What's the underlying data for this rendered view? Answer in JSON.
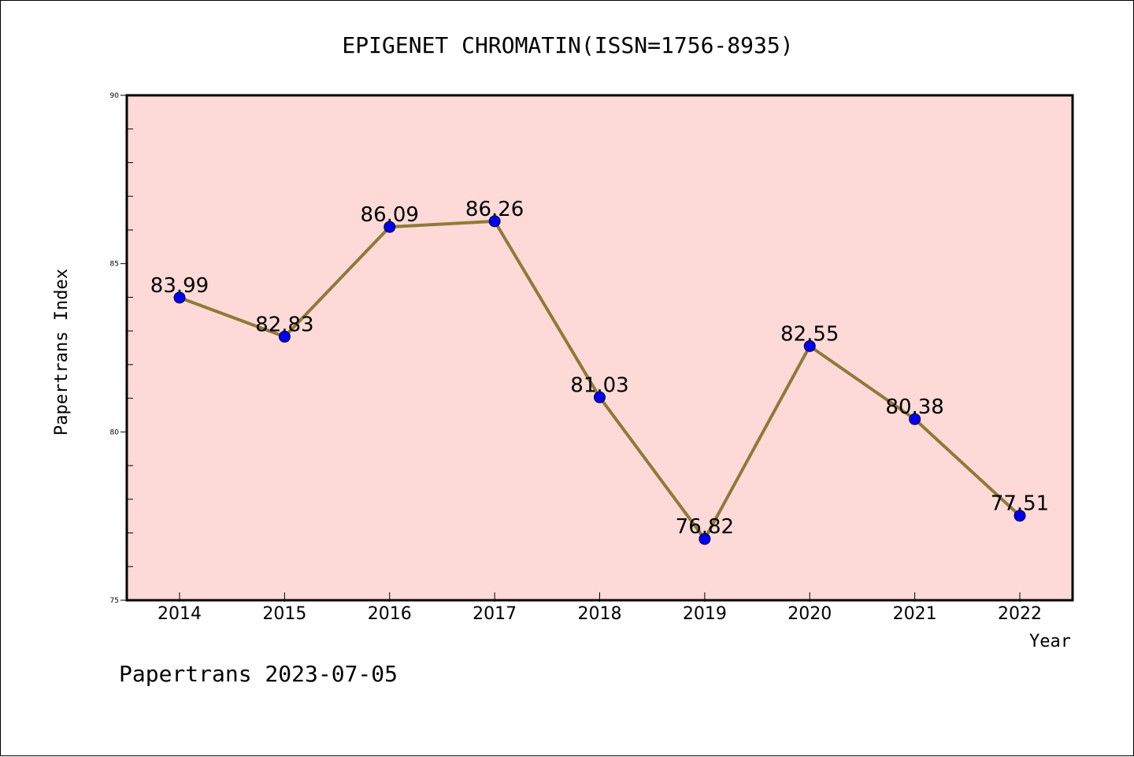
{
  "colors": {
    "plot_background": "#fddad7",
    "line": "#8e7a3a",
    "marker": "#0000ee",
    "axis": "#000000"
  },
  "footer": "Papertrans 2023-07-05",
  "chart_data": {
    "type": "line",
    "title": "EPIGENET CHROMATIN(ISSN=1756-8935)",
    "xlabel": "Year",
    "ylabel": "Papertrans Index",
    "categories": [
      "2014",
      "2015",
      "2016",
      "2017",
      "2018",
      "2019",
      "2020",
      "2021",
      "2022"
    ],
    "values": [
      83.99,
      82.83,
      86.09,
      86.26,
      81.03,
      76.82,
      82.55,
      80.38,
      77.51
    ],
    "data_labels": [
      "83.99",
      "82.83",
      "86.09",
      "86.26",
      "81.03",
      "76.82",
      "82.55",
      "80.38",
      "77.51"
    ],
    "ylim": [
      75,
      90
    ],
    "yticks": [
      "75",
      "80",
      "85",
      "90"
    ],
    "grid": false,
    "legend": "none"
  }
}
